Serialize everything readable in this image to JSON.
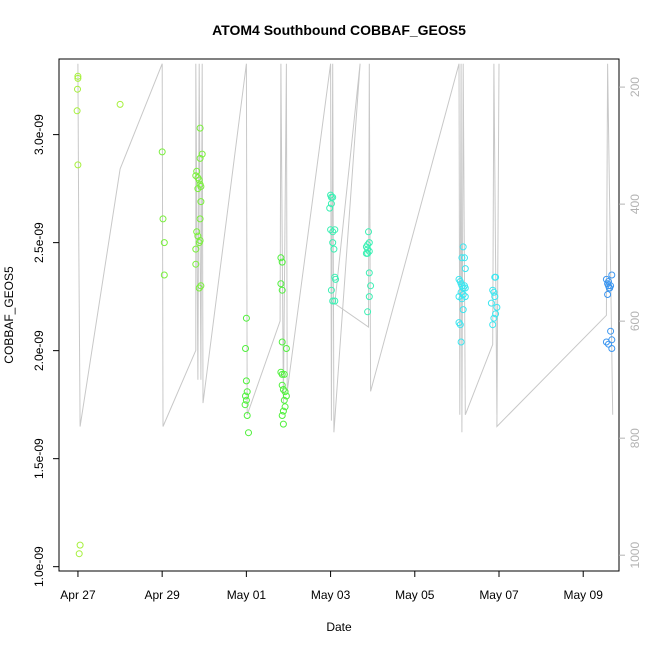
{
  "chart_data": {
    "type": "scatter",
    "title": "ATOM4 Southbound COBBAF_GEOS5",
    "xlabel": "Date",
    "ylabel": "COBBAF_GEOS5",
    "x_tick_labels": [
      "Apr 27",
      "Apr 29",
      "May 01",
      "May 03",
      "May 05",
      "May 07",
      "May 09"
    ],
    "x_tick_days": [
      27,
      29,
      31,
      33,
      35,
      37,
      39
    ],
    "xlim_days": [
      26.55,
      39.85
    ],
    "y_tick_labels": [
      "1.0e-09",
      "1.5e-09",
      "2.0e-09",
      "2.5e-09",
      "3.0e-09"
    ],
    "y_tick_values": [
      1e-09,
      1.5e-09,
      2e-09,
      2.5e-09,
      3e-09
    ],
    "ylim": [
      9.8e-10,
      3.35e-09
    ],
    "y2_tick_labels": [
      "200",
      "400",
      "600",
      "800",
      "1000"
    ],
    "y2_tick_values": [
      200,
      400,
      600,
      800,
      1000
    ],
    "y2lim": [
      1027,
      152
    ],
    "series": [
      {
        "color": "#a6f03c",
        "points": [
          [
            27.0,
            3.27e-09
          ],
          [
            27.0,
            3.26e-09
          ],
          [
            26.99,
            3.21e-09
          ],
          [
            26.98,
            3.11e-09
          ],
          [
            27.0,
            2.86e-09
          ],
          [
            27.05,
            1.1e-09
          ],
          [
            27.03,
            1.06e-09
          ],
          [
            28.0,
            3.14e-09
          ]
        ]
      },
      {
        "color": "#7af03c",
        "points": [
          [
            29.0,
            2.92e-09
          ],
          [
            29.02,
            2.61e-09
          ],
          [
            29.05,
            2.5e-09
          ],
          [
            29.05,
            2.35e-09
          ],
          [
            29.8,
            2.4e-09
          ],
          [
            29.8,
            2.47e-09
          ],
          [
            29.82,
            2.55e-09
          ],
          [
            29.85,
            2.53e-09
          ],
          [
            29.88,
            2.5e-09
          ],
          [
            29.9,
            2.51e-09
          ],
          [
            29.9,
            2.61e-09
          ],
          [
            29.92,
            2.69e-09
          ],
          [
            29.85,
            2.75e-09
          ],
          [
            29.9,
            2.77e-09
          ],
          [
            29.92,
            2.76e-09
          ],
          [
            29.8,
            2.81e-09
          ],
          [
            29.82,
            2.83e-09
          ],
          [
            29.85,
            2.8e-09
          ],
          [
            29.88,
            2.79e-09
          ],
          [
            29.9,
            2.89e-09
          ],
          [
            29.95,
            2.91e-09
          ],
          [
            29.9,
            3.03e-09
          ],
          [
            29.88,
            2.29e-09
          ],
          [
            29.92,
            2.3e-09
          ]
        ]
      },
      {
        "color": "#50f03c",
        "points": [
          [
            31.0,
            2.15e-09
          ],
          [
            30.98,
            2.01e-09
          ],
          [
            31.0,
            1.86e-09
          ],
          [
            31.02,
            1.81e-09
          ],
          [
            30.98,
            1.79e-09
          ],
          [
            31.0,
            1.77e-09
          ],
          [
            30.97,
            1.75e-09
          ],
          [
            31.02,
            1.7e-09
          ],
          [
            31.05,
            1.62e-09
          ],
          [
            31.82,
            2.43e-09
          ],
          [
            31.85,
            2.41e-09
          ],
          [
            31.82,
            2.31e-09
          ],
          [
            31.85,
            2.28e-09
          ],
          [
            31.85,
            2.04e-09
          ],
          [
            31.95,
            2.01e-09
          ],
          [
            31.82,
            1.9e-09
          ],
          [
            31.85,
            1.89e-09
          ],
          [
            31.9,
            1.89e-09
          ],
          [
            31.85,
            1.84e-09
          ],
          [
            31.88,
            1.82e-09
          ],
          [
            31.92,
            1.81e-09
          ],
          [
            31.95,
            1.79e-09
          ],
          [
            31.9,
            1.77e-09
          ],
          [
            31.92,
            1.74e-09
          ],
          [
            31.88,
            1.72e-09
          ],
          [
            31.85,
            1.7e-09
          ],
          [
            31.88,
            1.66e-09
          ]
        ]
      },
      {
        "color": "#3cf0b4",
        "points": [
          [
            33.0,
            2.72e-09
          ],
          [
            33.02,
            2.71e-09
          ],
          [
            33.05,
            2.71e-09
          ],
          [
            32.98,
            2.66e-09
          ],
          [
            33.02,
            2.68e-09
          ],
          [
            33.0,
            2.56e-09
          ],
          [
            33.05,
            2.55e-09
          ],
          [
            33.1,
            2.56e-09
          ],
          [
            33.05,
            2.5e-09
          ],
          [
            33.08,
            2.47e-09
          ],
          [
            33.1,
            2.34e-09
          ],
          [
            33.12,
            2.33e-09
          ],
          [
            33.02,
            2.28e-09
          ],
          [
            33.05,
            2.23e-09
          ],
          [
            33.1,
            2.23e-09
          ],
          [
            33.9,
            2.55e-09
          ],
          [
            33.92,
            2.5e-09
          ],
          [
            33.88,
            2.49e-09
          ],
          [
            33.85,
            2.48e-09
          ],
          [
            33.88,
            2.47e-09
          ],
          [
            33.92,
            2.46e-09
          ],
          [
            33.85,
            2.45e-09
          ],
          [
            33.88,
            2.45e-09
          ],
          [
            33.92,
            2.36e-09
          ],
          [
            33.95,
            2.3e-09
          ],
          [
            33.92,
            2.25e-09
          ],
          [
            33.88,
            2.18e-09
          ]
        ]
      },
      {
        "color": "#3ce6f0",
        "points": [
          [
            36.15,
            2.48e-09
          ],
          [
            36.18,
            2.43e-09
          ],
          [
            36.12,
            2.43e-09
          ],
          [
            36.2,
            2.38e-09
          ],
          [
            36.05,
            2.33e-09
          ],
          [
            36.08,
            2.32e-09
          ],
          [
            36.1,
            2.31e-09
          ],
          [
            36.12,
            2.3e-09
          ],
          [
            36.15,
            2.29e-09
          ],
          [
            36.18,
            2.3e-09
          ],
          [
            36.2,
            2.29e-09
          ],
          [
            36.1,
            2.27e-09
          ],
          [
            36.15,
            2.26e-09
          ],
          [
            36.2,
            2.25e-09
          ],
          [
            36.05,
            2.25e-09
          ],
          [
            36.12,
            2.24e-09
          ],
          [
            36.15,
            2.19e-09
          ],
          [
            36.05,
            2.13e-09
          ],
          [
            36.08,
            2.12e-09
          ],
          [
            36.1,
            2.04e-09
          ],
          [
            36.9,
            2.34e-09
          ],
          [
            36.92,
            2.34e-09
          ],
          [
            36.85,
            2.28e-09
          ],
          [
            36.88,
            2.27e-09
          ],
          [
            36.9,
            2.25e-09
          ],
          [
            36.82,
            2.22e-09
          ],
          [
            36.95,
            2.2e-09
          ],
          [
            36.92,
            2.17e-09
          ],
          [
            36.88,
            2.15e-09
          ],
          [
            36.85,
            2.12e-09
          ]
        ]
      },
      {
        "color": "#3c96f0",
        "points": [
          [
            39.55,
            2.33e-09
          ],
          [
            39.58,
            2.31e-09
          ],
          [
            39.6,
            2.3e-09
          ],
          [
            39.62,
            2.29e-09
          ],
          [
            39.65,
            2.3e-09
          ],
          [
            39.68,
            2.35e-09
          ],
          [
            39.6,
            2.32e-09
          ],
          [
            39.63,
            2.29e-09
          ],
          [
            39.58,
            2.26e-09
          ],
          [
            39.65,
            2.09e-09
          ],
          [
            39.68,
            2.05e-09
          ],
          [
            39.55,
            2.04e-09
          ],
          [
            39.6,
            2.03e-09
          ],
          [
            39.68,
            2.01e-09
          ]
        ]
      }
    ],
    "pressure_trace": {
      "color": "#c8c8c8",
      "points": [
        [
          27.0,
          160
        ],
        [
          27.02,
          470
        ],
        [
          27.05,
          780
        ],
        [
          28.0,
          340
        ],
        [
          29.0,
          160
        ],
        [
          29.02,
          780
        ],
        [
          29.8,
          650
        ],
        [
          29.8,
          160
        ],
        [
          29.85,
          700
        ],
        [
          29.88,
          160
        ],
        [
          29.92,
          700
        ],
        [
          29.95,
          160
        ],
        [
          29.97,
          740
        ],
        [
          31.0,
          160
        ],
        [
          31.02,
          760
        ],
        [
          31.8,
          600
        ],
        [
          31.82,
          160
        ],
        [
          31.88,
          740
        ],
        [
          31.95,
          160
        ],
        [
          31.97,
          720
        ],
        [
          33.0,
          160
        ],
        [
          33.02,
          770
        ],
        [
          33.05,
          160
        ],
        [
          33.08,
          790
        ],
        [
          33.7,
          160
        ],
        [
          33.1,
          570
        ],
        [
          33.9,
          610
        ],
        [
          33.92,
          160
        ],
        [
          33.95,
          720
        ],
        [
          36.05,
          160
        ],
        [
          36.07,
          760
        ],
        [
          36.1,
          160
        ],
        [
          36.12,
          790
        ],
        [
          36.15,
          160
        ],
        [
          36.2,
          760
        ],
        [
          36.85,
          640
        ],
        [
          36.88,
          160
        ],
        [
          36.95,
          760
        ],
        [
          37.0,
          160
        ],
        [
          36.95,
          780
        ],
        [
          39.55,
          590
        ],
        [
          39.58,
          160
        ],
        [
          39.7,
          760
        ]
      ]
    }
  }
}
